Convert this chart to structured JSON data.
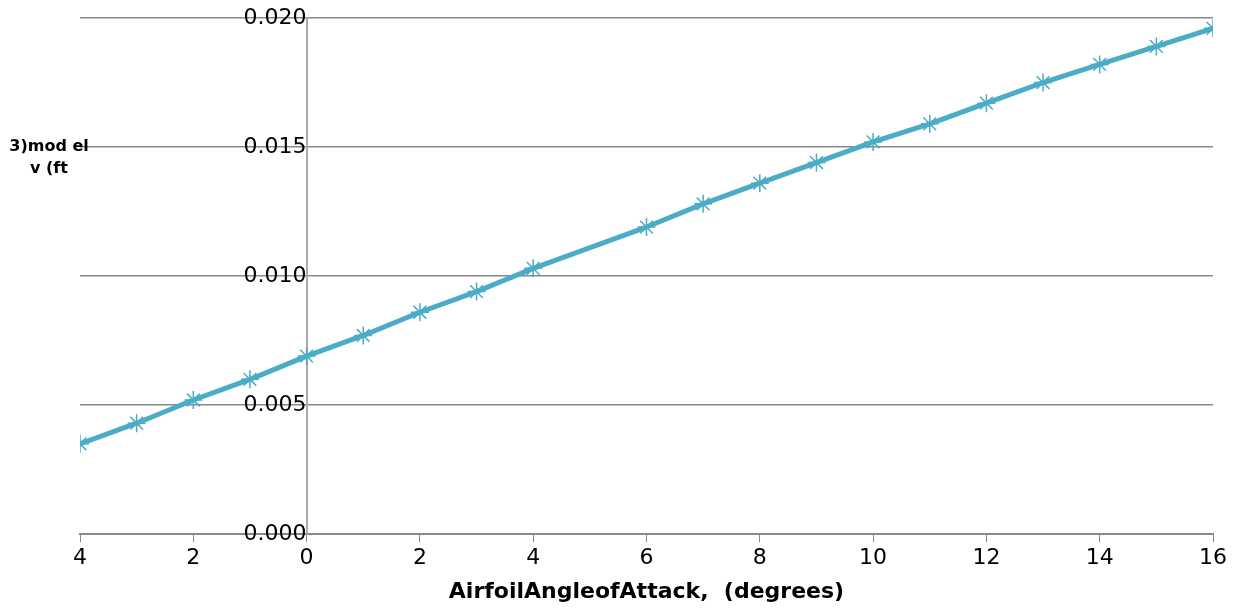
{
  "chart_data": {
    "type": "line",
    "xlabel": "AirfoilAngleofAttack,  (degrees)",
    "ylabel": "3)mod el v (ft",
    "x": [
      -4,
      -3,
      -2,
      -1,
      0,
      1,
      2,
      3,
      4,
      6,
      7,
      8,
      9,
      10,
      11,
      12,
      13,
      14,
      15,
      16
    ],
    "series": [
      {
        "color": "#4bacc6",
        "values": [
          0.0035,
          0.0043,
          0.0052,
          0.006,
          0.0069,
          0.0077,
          0.0086,
          0.0094,
          0.0103,
          0.0119,
          0.0128,
          0.0136,
          0.0144,
          0.0152,
          0.0159,
          0.0167,
          0.0175,
          0.0182,
          0.0189,
          0.0196
        ]
      }
    ],
    "xlim": [
      -4,
      16
    ],
    "xticks": [
      {
        "value": -4,
        "label": "4"
      },
      {
        "value": -2,
        "label": "2"
      },
      0,
      2,
      4,
      6,
      8,
      10,
      12,
      14,
      16
    ],
    "ylim": [
      0,
      0.02
    ],
    "yticks": [
      {
        "value": 0,
        "label": "0.000"
      },
      {
        "value": 0.005,
        "label": "0.005"
      },
      {
        "value": 0.01,
        "label": "0.010"
      },
      {
        "value": 0.015,
        "label": "0.015"
      },
      {
        "value": 0.02,
        "label": "0.020"
      }
    ],
    "grid": "y",
    "legend": false,
    "marker": "cross",
    "line_style": "solid"
  }
}
